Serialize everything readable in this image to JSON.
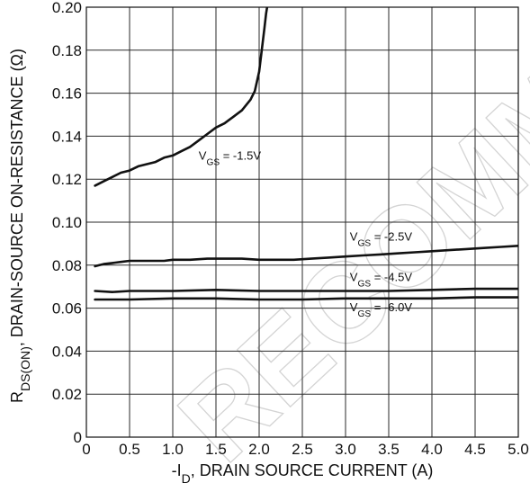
{
  "chart_data": {
    "type": "line",
    "xlabel": {
      "pre": "-I",
      "sub": "D",
      "post": ", DRAIN SOURCE CURRENT (A)"
    },
    "ylabel": {
      "pre": "R",
      "sub": "DS(ON)",
      "post": ", DRAIN-SOURCE ON-RESISTANCE (Ω)"
    },
    "xlim": [
      0,
      5.0
    ],
    "ylim": [
      0,
      0.2
    ],
    "grid": true,
    "x_ticks": [
      {
        "value": 0,
        "label": "0"
      },
      {
        "value": 0.5,
        "label": "0.5"
      },
      {
        "value": 1.0,
        "label": "1.0"
      },
      {
        "value": 1.5,
        "label": "1.5"
      },
      {
        "value": 2.0,
        "label": "2.0"
      },
      {
        "value": 2.5,
        "label": "2.5"
      },
      {
        "value": 3.0,
        "label": "3.0"
      },
      {
        "value": 3.5,
        "label": "3.5"
      },
      {
        "value": 4.0,
        "label": "4.0"
      },
      {
        "value": 4.5,
        "label": "4.5"
      },
      {
        "value": 5.0,
        "label": "5.0"
      }
    ],
    "y_ticks": [
      {
        "value": 0,
        "label": "0"
      },
      {
        "value": 0.02,
        "label": "0.02"
      },
      {
        "value": 0.04,
        "label": "0.04"
      },
      {
        "value": 0.06,
        "label": "0.06"
      },
      {
        "value": 0.08,
        "label": "0.08"
      },
      {
        "value": 0.1,
        "label": "0.10"
      },
      {
        "value": 0.12,
        "label": "0.12"
      },
      {
        "value": 0.14,
        "label": "0.14"
      },
      {
        "value": 0.16,
        "label": "0.16"
      },
      {
        "value": 0.18,
        "label": "0.18"
      },
      {
        "value": 0.2,
        "label": "0.20"
      }
    ],
    "series": [
      {
        "name": "VGS = -1.5V",
        "label": {
          "pre": "V",
          "sub": "GS",
          "post": " = -1.5V",
          "at": [
            1.3,
            0.129
          ]
        },
        "x": [
          0.1,
          0.2,
          0.3,
          0.4,
          0.5,
          0.6,
          0.7,
          0.8,
          0.9,
          1.0,
          1.1,
          1.2,
          1.3,
          1.4,
          1.5,
          1.6,
          1.7,
          1.8,
          1.9,
          1.95,
          2.0,
          2.03,
          2.06,
          2.08,
          2.1
        ],
        "y": [
          0.117,
          0.119,
          0.121,
          0.123,
          0.124,
          0.126,
          0.127,
          0.128,
          0.13,
          0.131,
          0.133,
          0.135,
          0.138,
          0.141,
          0.144,
          0.146,
          0.149,
          0.152,
          0.157,
          0.161,
          0.17,
          0.18,
          0.19,
          0.197,
          0.202
        ]
      },
      {
        "name": "VGS = -2.5V",
        "label": {
          "pre": "V",
          "sub": "GS",
          "post": " = -2.5V",
          "at": [
            3.05,
            0.0915
          ]
        },
        "x": [
          0.1,
          0.15,
          0.2,
          0.3,
          0.4,
          0.5,
          0.6,
          0.7,
          0.8,
          0.9,
          1.0,
          1.2,
          1.4,
          1.6,
          1.8,
          2.0,
          2.2,
          2.4,
          2.6,
          2.8,
          3.0,
          3.2,
          3.4,
          3.6,
          3.8,
          4.0,
          4.2,
          4.4,
          4.6,
          4.8,
          5.0
        ],
        "y": [
          0.0795,
          0.08,
          0.0805,
          0.081,
          0.0815,
          0.082,
          0.082,
          0.082,
          0.082,
          0.082,
          0.0825,
          0.0825,
          0.083,
          0.083,
          0.083,
          0.0825,
          0.0825,
          0.0825,
          0.083,
          0.0835,
          0.084,
          0.0845,
          0.085,
          0.0855,
          0.086,
          0.0865,
          0.087,
          0.0875,
          0.088,
          0.0885,
          0.089
        ]
      },
      {
        "name": "VGS = -4.5V",
        "label": {
          "pre": "V",
          "sub": "GS",
          "post": " = -4.5V",
          "at": [
            3.05,
            0.0725
          ]
        },
        "x": [
          0.1,
          0.3,
          0.5,
          1.0,
          1.5,
          2.0,
          2.5,
          3.0,
          3.5,
          4.0,
          4.5,
          5.0
        ],
        "y": [
          0.068,
          0.0675,
          0.068,
          0.068,
          0.0685,
          0.068,
          0.068,
          0.068,
          0.068,
          0.0685,
          0.069,
          0.069
        ]
      },
      {
        "name": "VGS = -6.0V",
        "label": {
          "pre": "V",
          "sub": "GS",
          "post": " = -6.0V",
          "at": [
            3.05,
            0.0585
          ]
        },
        "x": [
          0.1,
          0.5,
          1.0,
          1.5,
          2.0,
          2.5,
          3.0,
          3.5,
          4.0,
          4.5,
          5.0
        ],
        "y": [
          0.064,
          0.064,
          0.0645,
          0.0645,
          0.064,
          0.064,
          0.0645,
          0.0645,
          0.0645,
          0.065,
          0.065
        ]
      }
    ],
    "watermark": "RECOMMENDED",
    "colors": {
      "line": "#111111",
      "grid": "#2a2a2a",
      "watermark": "#d4d4d4"
    }
  }
}
